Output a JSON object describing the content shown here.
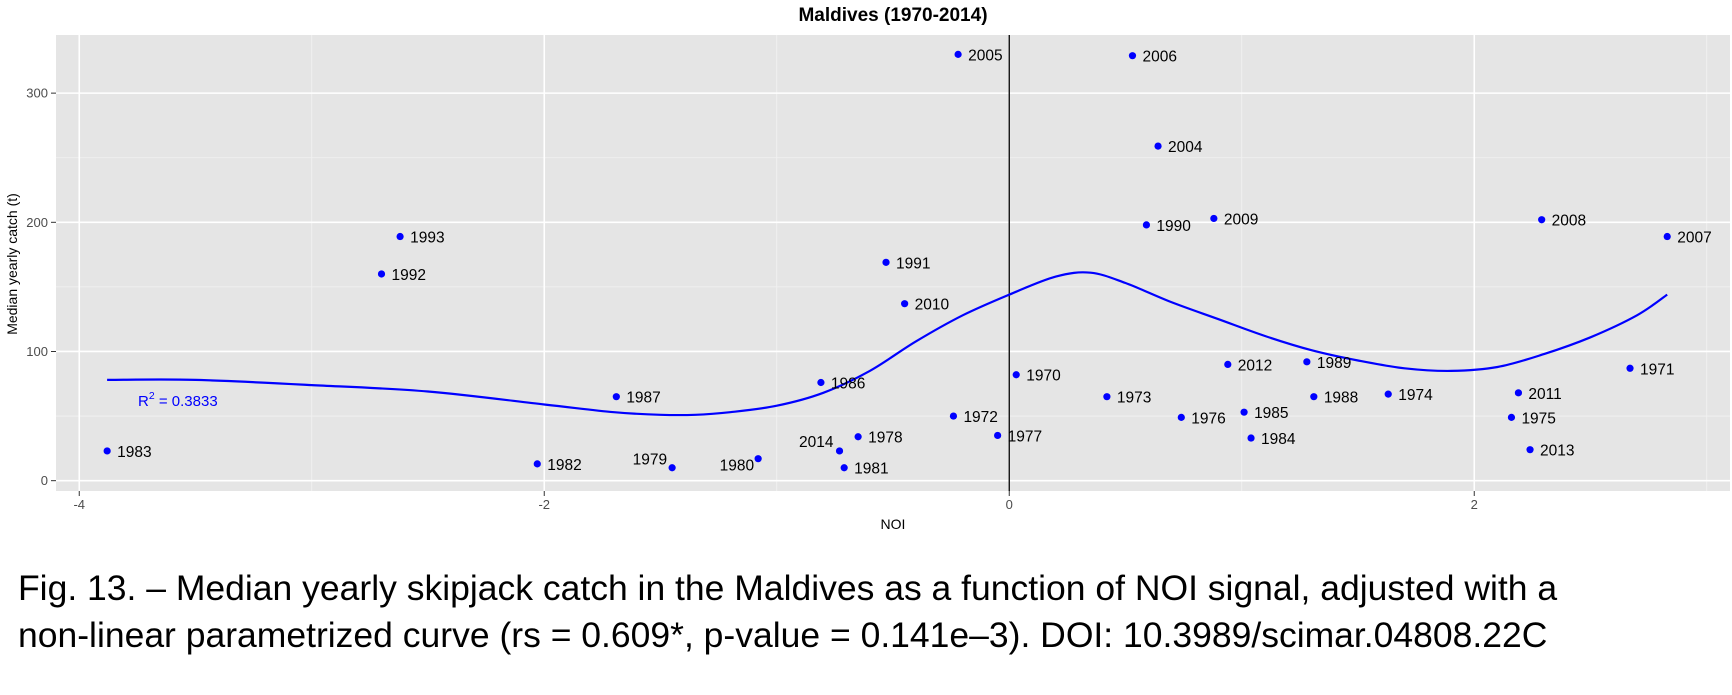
{
  "chart_data": {
    "type": "scatter",
    "title": "Maldives (1970-2014)",
    "xlabel": "NOI",
    "ylabel": "Median yearly catch (t)",
    "xlim": [
      -4.1,
      3.1
    ],
    "ylim": [
      -8,
      345
    ],
    "xticks": [
      -4,
      -2,
      0,
      2
    ],
    "xtick_labels": [
      "-4",
      "-2",
      "0",
      "2"
    ],
    "yticks": [
      0,
      100,
      200,
      300
    ],
    "ytick_labels": [
      "0",
      "100",
      "200",
      "300"
    ],
    "grid": true,
    "point_color": "#0000ff",
    "curve_color": "#0000ff",
    "panel_background": "#e5e5e5",
    "r_squared_label": {
      "prefix": "R",
      "superscript": "2",
      "suffix": " = 0.3833"
    },
    "points": [
      {
        "label": "1983",
        "x": -3.88,
        "y": 23
      },
      {
        "label": "1982",
        "x": -2.03,
        "y": 13
      },
      {
        "label": "1979",
        "x": -1.45,
        "y": 10
      },
      {
        "label": "1980",
        "x": -1.08,
        "y": 17
      },
      {
        "label": "2014",
        "x": -0.73,
        "y": 23
      },
      {
        "label": "1981",
        "x": -0.71,
        "y": 10
      },
      {
        "label": "1978",
        "x": -0.65,
        "y": 34
      },
      {
        "label": "1993",
        "x": -2.62,
        "y": 189
      },
      {
        "label": "1992",
        "x": -2.7,
        "y": 160
      },
      {
        "label": "1987",
        "x": -1.69,
        "y": 65
      },
      {
        "label": "1986",
        "x": -0.81,
        "y": 76
      },
      {
        "label": "1991",
        "x": -0.53,
        "y": 169
      },
      {
        "label": "2010",
        "x": -0.45,
        "y": 137
      },
      {
        "label": "1972",
        "x": -0.24,
        "y": 50
      },
      {
        "label": "1977",
        "x": -0.05,
        "y": 35
      },
      {
        "label": "1970",
        "x": 0.03,
        "y": 82
      },
      {
        "label": "2005",
        "x": -0.22,
        "y": 330
      },
      {
        "label": "2006",
        "x": 0.53,
        "y": 329
      },
      {
        "label": "2004",
        "x": 0.64,
        "y": 259
      },
      {
        "label": "1990",
        "x": 0.59,
        "y": 198
      },
      {
        "label": "2009",
        "x": 0.88,
        "y": 203
      },
      {
        "label": "1973",
        "x": 0.42,
        "y": 65
      },
      {
        "label": "1976",
        "x": 0.74,
        "y": 49
      },
      {
        "label": "2012",
        "x": 0.94,
        "y": 90
      },
      {
        "label": "1985",
        "x": 1.01,
        "y": 53
      },
      {
        "label": "1984",
        "x": 1.04,
        "y": 33
      },
      {
        "label": "1989",
        "x": 1.28,
        "y": 92
      },
      {
        "label": "1988",
        "x": 1.31,
        "y": 65
      },
      {
        "label": "1974",
        "x": 1.63,
        "y": 67
      },
      {
        "label": "2011",
        "x": 2.19,
        "y": 68
      },
      {
        "label": "1975",
        "x": 2.16,
        "y": 49
      },
      {
        "label": "2013",
        "x": 2.24,
        "y": 24
      },
      {
        "label": "2008",
        "x": 2.29,
        "y": 202
      },
      {
        "label": "1971",
        "x": 2.67,
        "y": 87
      },
      {
        "label": "2007",
        "x": 2.83,
        "y": 189
      }
    ],
    "fitted_curve": {
      "x": [
        -3.88,
        -3.5,
        -3.0,
        -2.5,
        -2.0,
        -1.7,
        -1.5,
        -1.35,
        -1.2,
        -1.0,
        -0.8,
        -0.6,
        -0.4,
        -0.2,
        0.0,
        0.2,
        0.35,
        0.5,
        0.7,
        0.9,
        1.1,
        1.3,
        1.5,
        1.7,
        1.9,
        2.1,
        2.3,
        2.5,
        2.7,
        2.83
      ],
      "y": [
        78,
        78,
        74,
        69,
        59,
        53,
        51,
        51,
        53,
        58,
        68,
        85,
        108,
        128,
        144,
        158,
        161,
        153,
        138,
        125,
        112,
        101,
        93,
        87,
        85,
        88,
        98,
        111,
        128,
        144
      ]
    }
  },
  "caption": {
    "line1": "Fig. 13. – Median yearly skipjack catch in the Maldives as a function of NOI signal, adjusted with a",
    "line2": "non-linear parametrized curve (rs = 0.609*, p-value = 0.141e–3). DOI: 10.3989/scimar.04808.22C"
  }
}
